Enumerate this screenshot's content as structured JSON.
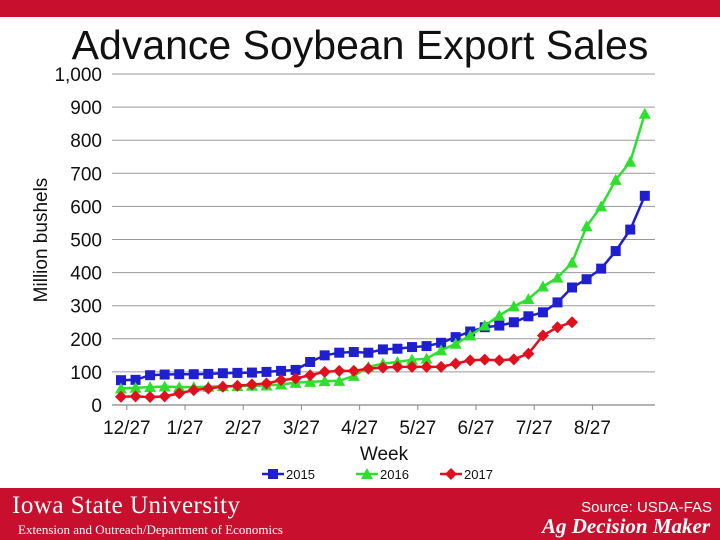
{
  "slide": {
    "title": "Advance Soybean Export Sales",
    "footer_university": "Iowa State University",
    "footer_dept": "Extension and Outreach/Department of Economics",
    "source": "Source: USDA-FAS",
    "brand": "Ag Decision Maker"
  },
  "chart_data": {
    "type": "line",
    "title": "",
    "xlabel": "Week",
    "ylabel": "Million bushels",
    "ylim": [
      0,
      1000
    ],
    "yticks": [
      0,
      100,
      200,
      300,
      400,
      500,
      600,
      700,
      800,
      900,
      1000
    ],
    "ytick_labels": [
      "0",
      "100",
      "200",
      "300",
      "400",
      "500",
      "600",
      "700",
      "800",
      "900",
      "1,000"
    ],
    "xtick_labels": [
      "12/27",
      "1/27",
      "2/27",
      "3/27",
      "4/27",
      "5/27",
      "6/27",
      "7/27",
      "8/27"
    ],
    "grid": true,
    "legend_position": "bottom",
    "series": [
      {
        "name": "2015",
        "color": "#1f1fd0",
        "marker": "square",
        "values": [
          75,
          76,
          90,
          92,
          93,
          93,
          94,
          96,
          97,
          98,
          100,
          103,
          106,
          130,
          150,
          158,
          160,
          158,
          168,
          170,
          175,
          178,
          188,
          205,
          222,
          235,
          240,
          250,
          268,
          280,
          310,
          355,
          380,
          412,
          465,
          530,
          632
        ]
      },
      {
        "name": "2016",
        "color": "#2ee02e",
        "marker": "triangle",
        "values": [
          50,
          52,
          54,
          56,
          54,
          54,
          55,
          57,
          57,
          58,
          59,
          62,
          67,
          70,
          72,
          73,
          88,
          115,
          125,
          130,
          137,
          140,
          165,
          185,
          210,
          240,
          270,
          298,
          320,
          358,
          385,
          430,
          540,
          600,
          680,
          735,
          880
        ]
      },
      {
        "name": "2017",
        "color": "#e0101e",
        "marker": "diamond",
        "values": [
          25,
          26,
          24,
          26,
          35,
          45,
          50,
          55,
          58,
          62,
          65,
          75,
          80,
          90,
          100,
          103,
          103,
          110,
          113,
          115,
          115,
          115,
          115,
          125,
          135,
          137,
          135,
          138,
          155,
          210,
          235,
          250
        ]
      }
    ]
  }
}
